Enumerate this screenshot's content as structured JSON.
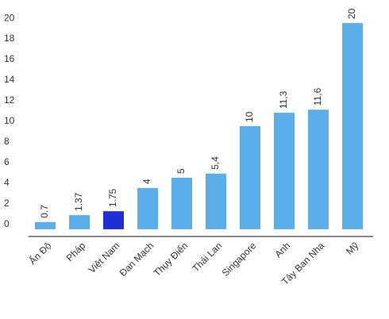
{
  "chart_data": {
    "type": "bar",
    "categories": [
      "Ấn Độ",
      "Pháp",
      "Việt Nam",
      "Đan Mạch",
      "Thụy Điển",
      "Thái Lan",
      "Singapore",
      "Anh",
      "Tây Ban Nha",
      "Mỹ"
    ],
    "values": [
      0.7,
      1.37,
      1.75,
      4,
      5,
      5.4,
      10,
      11.3,
      11.6,
      20
    ],
    "value_labels": [
      "0.7",
      "1.37",
      "1.75",
      "4",
      "5",
      "5,4",
      "10",
      "11,3",
      "11,6",
      "20"
    ],
    "colors": [
      "#5aafea",
      "#5aafea",
      "#1e2fd8",
      "#5aafea",
      "#5aafea",
      "#5aafea",
      "#5aafea",
      "#5aafea",
      "#5aafea",
      "#5aafea"
    ],
    "ylim": [
      -0.7,
      20.7
    ],
    "yticks": [
      0,
      2,
      4,
      6,
      8,
      10,
      12,
      14,
      16,
      18,
      20
    ],
    "grid": false
  }
}
